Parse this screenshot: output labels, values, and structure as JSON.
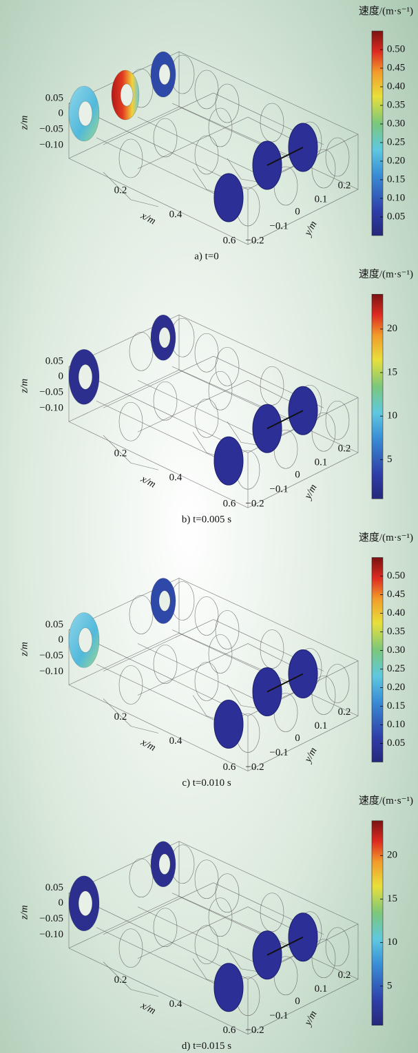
{
  "panels": [
    {
      "caption": "a) t=0",
      "colorbar": {
        "title": "速度/(m·s⁻¹)",
        "lim": [
          0,
          0.55
        ],
        "ticks": [
          {
            "value": 0.5,
            "label": "0.50"
          },
          0.45,
          {
            "value": 0.4,
            "label": "0.40"
          },
          0.35,
          {
            "value": 0.3,
            "label": "0.30"
          },
          0.25,
          {
            "value": 0.2,
            "label": "0.20"
          },
          0.15,
          {
            "value": 0.1,
            "label": "0.10"
          },
          0.05
        ]
      },
      "axes": {
        "z": {
          "label": "z/m",
          "ticks": [
            0.05,
            0,
            {
              "value": -0.05,
              "label": "−0.05"
            },
            {
              "value": -0.1,
              "label": "−0.10"
            }
          ]
        },
        "x": {
          "label": "x/m",
          "ticks": [
            0.2,
            0.4,
            0.6
          ]
        },
        "y": {
          "label": "y/m",
          "ticks": [
            {
              "value": -0.2,
              "label": "−0.2"
            },
            {
              "value": -0.1,
              "label": "−0.1"
            },
            0,
            0.1,
            0.2
          ]
        }
      }
    },
    {
      "caption": "b) t=0.005 s",
      "colorbar": {
        "title": "速度/(m·s⁻¹)",
        "lim": [
          0.5,
          24
        ],
        "ticks": [
          20,
          15,
          10,
          5
        ]
      },
      "axes": {
        "z": {
          "label": "z/m",
          "ticks": [
            0.05,
            0,
            {
              "value": -0.05,
              "label": "−0.05"
            },
            {
              "value": -0.1,
              "label": "−0.10"
            }
          ]
        },
        "x": {
          "label": "x/m",
          "ticks": [
            0.2,
            0.4,
            0.6
          ]
        },
        "y": {
          "label": "y/m",
          "ticks": [
            {
              "value": -0.2,
              "label": "−0.2"
            },
            {
              "value": -0.1,
              "label": "−0.1"
            },
            0,
            0.1,
            0.2
          ]
        }
      }
    },
    {
      "caption": "c) t=0.010 s",
      "colorbar": {
        "title": "速度/(m·s⁻¹)",
        "lim": [
          0,
          0.55
        ],
        "ticks": [
          {
            "value": 0.5,
            "label": "0.50"
          },
          0.45,
          {
            "value": 0.4,
            "label": "0.40"
          },
          0.35,
          {
            "value": 0.3,
            "label": "0.30"
          },
          0.25,
          {
            "value": 0.2,
            "label": "0.20"
          },
          0.15,
          {
            "value": 0.1,
            "label": "0.10"
          },
          0.05
        ]
      },
      "axes": {
        "z": {
          "label": "z/m",
          "ticks": [
            0.05,
            0,
            {
              "value": -0.05,
              "label": "−0.05"
            },
            {
              "value": -0.1,
              "label": "−0.10"
            }
          ]
        },
        "x": {
          "label": "x/m",
          "ticks": [
            0.2,
            0.4,
            0.6
          ]
        },
        "y": {
          "label": "y/m",
          "ticks": [
            {
              "value": -0.2,
              "label": "−0.2"
            },
            {
              "value": -0.1,
              "label": "−0.1"
            },
            0,
            0.1,
            0.2
          ]
        }
      }
    },
    {
      "caption": "d) t=0.015 s",
      "colorbar": {
        "title": "速度/(m·s⁻¹)",
        "lim": [
          0.5,
          24
        ],
        "ticks": [
          20,
          15,
          10,
          5
        ]
      },
      "axes": {
        "z": {
          "label": "z/m",
          "ticks": [
            0.05,
            0,
            {
              "value": -0.05,
              "label": "−0.05"
            },
            {
              "value": -0.1,
              "label": "−0.10"
            }
          ]
        },
        "x": {
          "label": "x/m",
          "ticks": [
            0.2,
            0.4,
            0.6
          ]
        },
        "y": {
          "label": "y/m",
          "ticks": [
            {
              "value": -0.2,
              "label": "−0.2"
            },
            {
              "value": -0.1,
              "label": "−0.1"
            },
            0,
            0.1,
            0.2
          ]
        }
      }
    }
  ]
}
